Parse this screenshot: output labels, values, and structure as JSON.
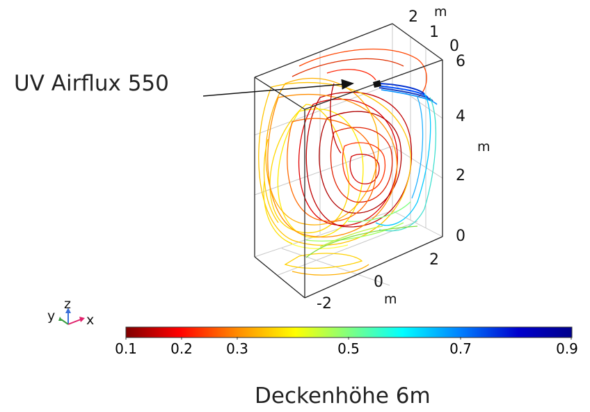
{
  "annotation": {
    "device_label": "UV Airflux 550"
  },
  "caption": "Deckenhöhe 6m",
  "axes": {
    "z_ticks": [
      "0",
      "2",
      "4",
      "6"
    ],
    "z_unit": "m",
    "x_ticks": [
      "-2",
      "0",
      "2"
    ],
    "x_unit": "m",
    "y_ticks": [
      "0",
      "1",
      "2"
    ],
    "y_unit": "m"
  },
  "triad": {
    "x": "x",
    "y": "y",
    "z": "z"
  },
  "colorbar": {
    "ticks": [
      "0.1",
      "0.2",
      "0.3",
      "0.5",
      "0.7",
      "0.9"
    ],
    "min": 0.1,
    "max": 0.9,
    "colormap": [
      "#7f0000",
      "#ff0000",
      "#ff8c00",
      "#ffff00",
      "#80ff80",
      "#00ffff",
      "#0080ff",
      "#0000cd",
      "#00008b"
    ]
  },
  "colors": {
    "frame": "#222222",
    "grid": "#c8c8c8",
    "arrow": "#111111"
  }
}
